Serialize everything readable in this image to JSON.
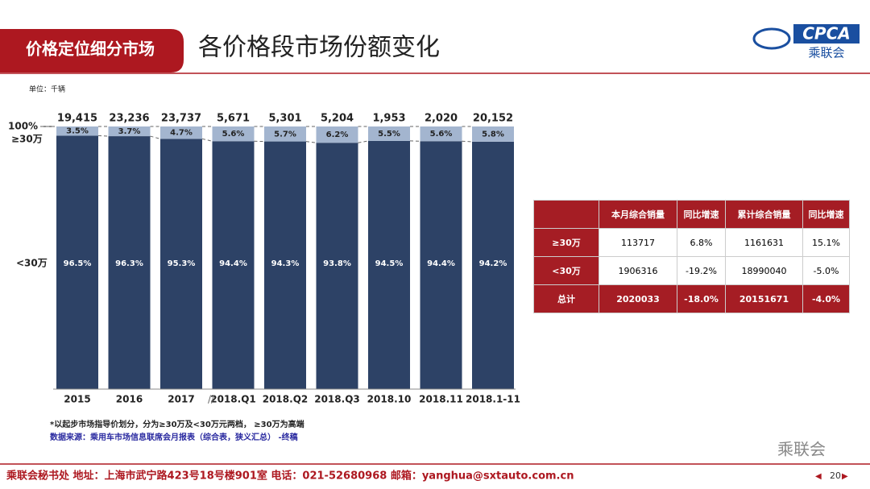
{
  "header": {
    "section": "价格定位细分市场",
    "title": "各价格段市场份额变化",
    "logo_text": "CPCA",
    "logo_sub": "乘联会"
  },
  "chart_data": {
    "type": "stacked_bar",
    "unit": "单位：千辆",
    "categories": [
      "2015",
      "2016",
      "2017",
      "2018.Q1",
      "2018.Q2",
      "2018.Q3",
      "2018.10",
      "2018.11",
      "2018.1-11"
    ],
    "totals": {
      "values": [
        19415,
        23236,
        23737,
        5671,
        5301,
        5204,
        1953,
        2020,
        20152
      ],
      "value_labels": [
        "19,415",
        "23,236",
        "23,737",
        "5,671",
        "5,301",
        "5,204",
        "1,953",
        "2,020",
        "20,152"
      ]
    },
    "series": [
      {
        "name": "<30万",
        "color": "#2d4266",
        "values": [
          96.5,
          96.3,
          95.3,
          94.4,
          94.3,
          93.8,
          94.5,
          94.4,
          94.2
        ],
        "value_labels": [
          "96.5%",
          "96.3%",
          "95.3%",
          "94.4%",
          "94.3%",
          "93.8%",
          "94.5%",
          "94.4%",
          "94.2%"
        ]
      },
      {
        "name": "≥30万",
        "color": "#a3b5cf",
        "values": [
          3.5,
          3.7,
          4.7,
          5.6,
          5.7,
          6.2,
          5.5,
          5.6,
          5.8
        ],
        "value_labels": [
          "3.5%",
          "3.7%",
          "4.7%",
          "5.6%",
          "5.7%",
          "6.2%",
          "5.5%",
          "5.6%",
          "5.8%"
        ]
      }
    ],
    "ylim": [
      0,
      100
    ],
    "yticks": [
      {
        "value": 100,
        "label": "100%"
      }
    ]
  },
  "table": {
    "columns": [
      "本月综合销量",
      "同比增速",
      "累计综合销量",
      "同比增速"
    ],
    "rows": [
      {
        "label": "≥30万",
        "cells": [
          "113717",
          "6.8%",
          "1161631",
          "15.1%"
        ]
      },
      {
        "label": "<30万",
        "cells": [
          "1906316",
          "-19.2%",
          "18990040",
          "-5.0%"
        ]
      },
      {
        "label": "总计",
        "cells": [
          "2020033",
          "-18.0%",
          "20151671",
          "-4.0%"
        ]
      }
    ]
  },
  "notes": [
    "*以起步市场指导价划分，分为≥30万及<30万元两档， ≥30万为高端",
    "数据来源：乘用车市场信息联席会月报表（综合表，狭义汇总） -终稿"
  ],
  "watermark": "乘联会",
  "footer": {
    "text": "乘联会秘书处  地址：上海市武宁路423号18号楼901室  电话：021-52680968  邮箱：yanghua@sxtauto.com.cn",
    "page": "20"
  }
}
